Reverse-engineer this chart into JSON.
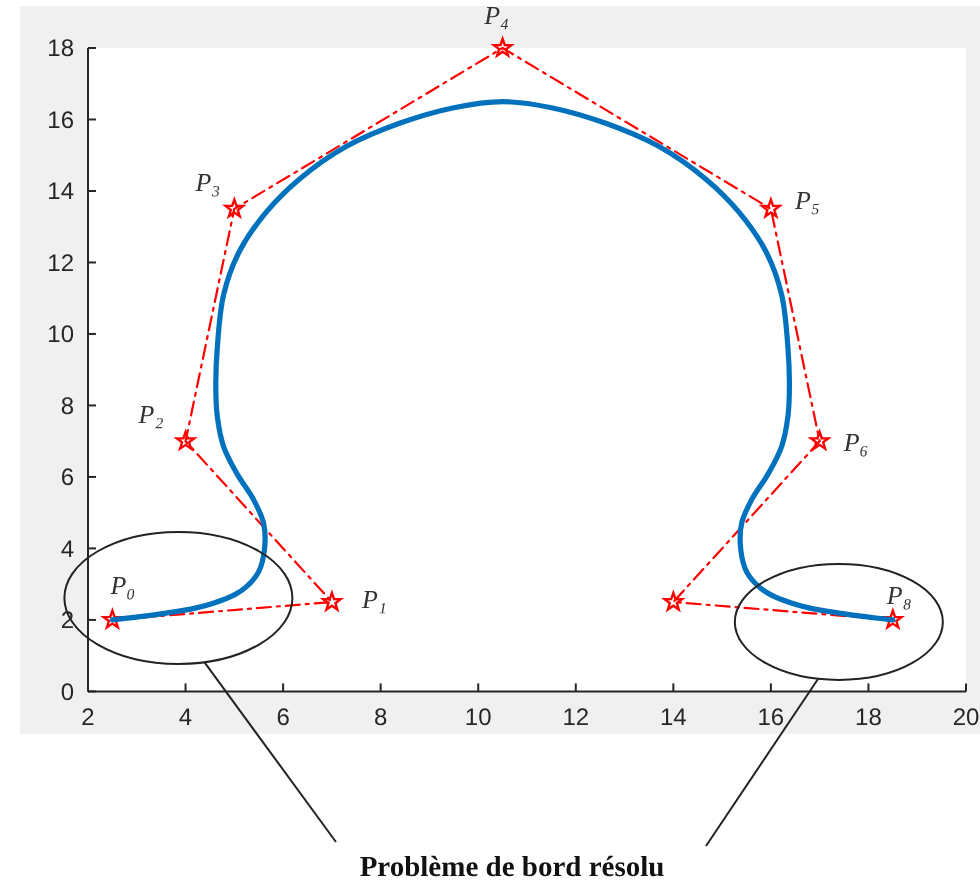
{
  "chart_data": {
    "type": "line",
    "xlim": [
      2,
      20
    ],
    "ylim": [
      0,
      18
    ],
    "xticks": [
      2,
      4,
      6,
      8,
      10,
      12,
      14,
      16,
      18,
      20
    ],
    "yticks": [
      0,
      2,
      4,
      6,
      8,
      10,
      12,
      14,
      16,
      18
    ],
    "series": [
      {
        "color": "#0072bd",
        "x": [
          2.5,
          3.0,
          3.6,
          4.2,
          4.6,
          5.0,
          5.25,
          5.5,
          5.62,
          5.6,
          5.4,
          5.05,
          4.78,
          4.65,
          4.62,
          4.65,
          4.78,
          5.1,
          5.65,
          6.35,
          7.3,
          8.4,
          9.5,
          10.5,
          11.5,
          12.6,
          13.7,
          14.65,
          15.35,
          15.9,
          16.22,
          16.35,
          16.38,
          16.35,
          16.22,
          15.95,
          15.6,
          15.4,
          15.38,
          15.5,
          15.75,
          16.0,
          16.4,
          16.8,
          17.4,
          18.0,
          18.5
        ],
        "values": [
          2.0,
          2.08,
          2.19,
          2.33,
          2.48,
          2.7,
          2.93,
          3.35,
          4.0,
          4.7,
          5.35,
          6.1,
          6.85,
          7.7,
          8.6,
          9.6,
          11.1,
          12.3,
          13.4,
          14.35,
          15.25,
          15.9,
          16.33,
          16.5,
          16.33,
          15.9,
          15.25,
          14.35,
          13.4,
          12.3,
          11.1,
          9.6,
          8.6,
          7.7,
          6.85,
          6.1,
          5.35,
          4.7,
          4.0,
          3.35,
          2.93,
          2.7,
          2.48,
          2.33,
          2.19,
          2.08,
          2.0
        ]
      },
      {
        "color": "#ff0000",
        "marker": "star",
        "line_style": "dashed",
        "x": [
          2.5,
          7,
          4,
          5,
          10.5,
          16,
          17,
          14,
          18.5
        ],
        "values": [
          2,
          2.5,
          7,
          13.5,
          18,
          13.5,
          7,
          2.5,
          2
        ]
      }
    ],
    "annotations": [
      {
        "text": "P₀",
        "x": 2.5,
        "y": 2
      },
      {
        "text": "P₁",
        "x": 7,
        "y": 2.5
      },
      {
        "text": "P₂",
        "x": 4,
        "y": 7
      },
      {
        "text": "P₃",
        "x": 5,
        "y": 13.5
      },
      {
        "text": "P₄",
        "x": 10.5,
        "y": 18
      },
      {
        "text": "P₅",
        "x": 16,
        "y": 13.5
      },
      {
        "text": "P₆",
        "x": 17,
        "y": 7
      },
      {
        "text": "P₈",
        "x": 18.5,
        "y": 2
      },
      "Problème de bord résolu"
    ]
  }
}
